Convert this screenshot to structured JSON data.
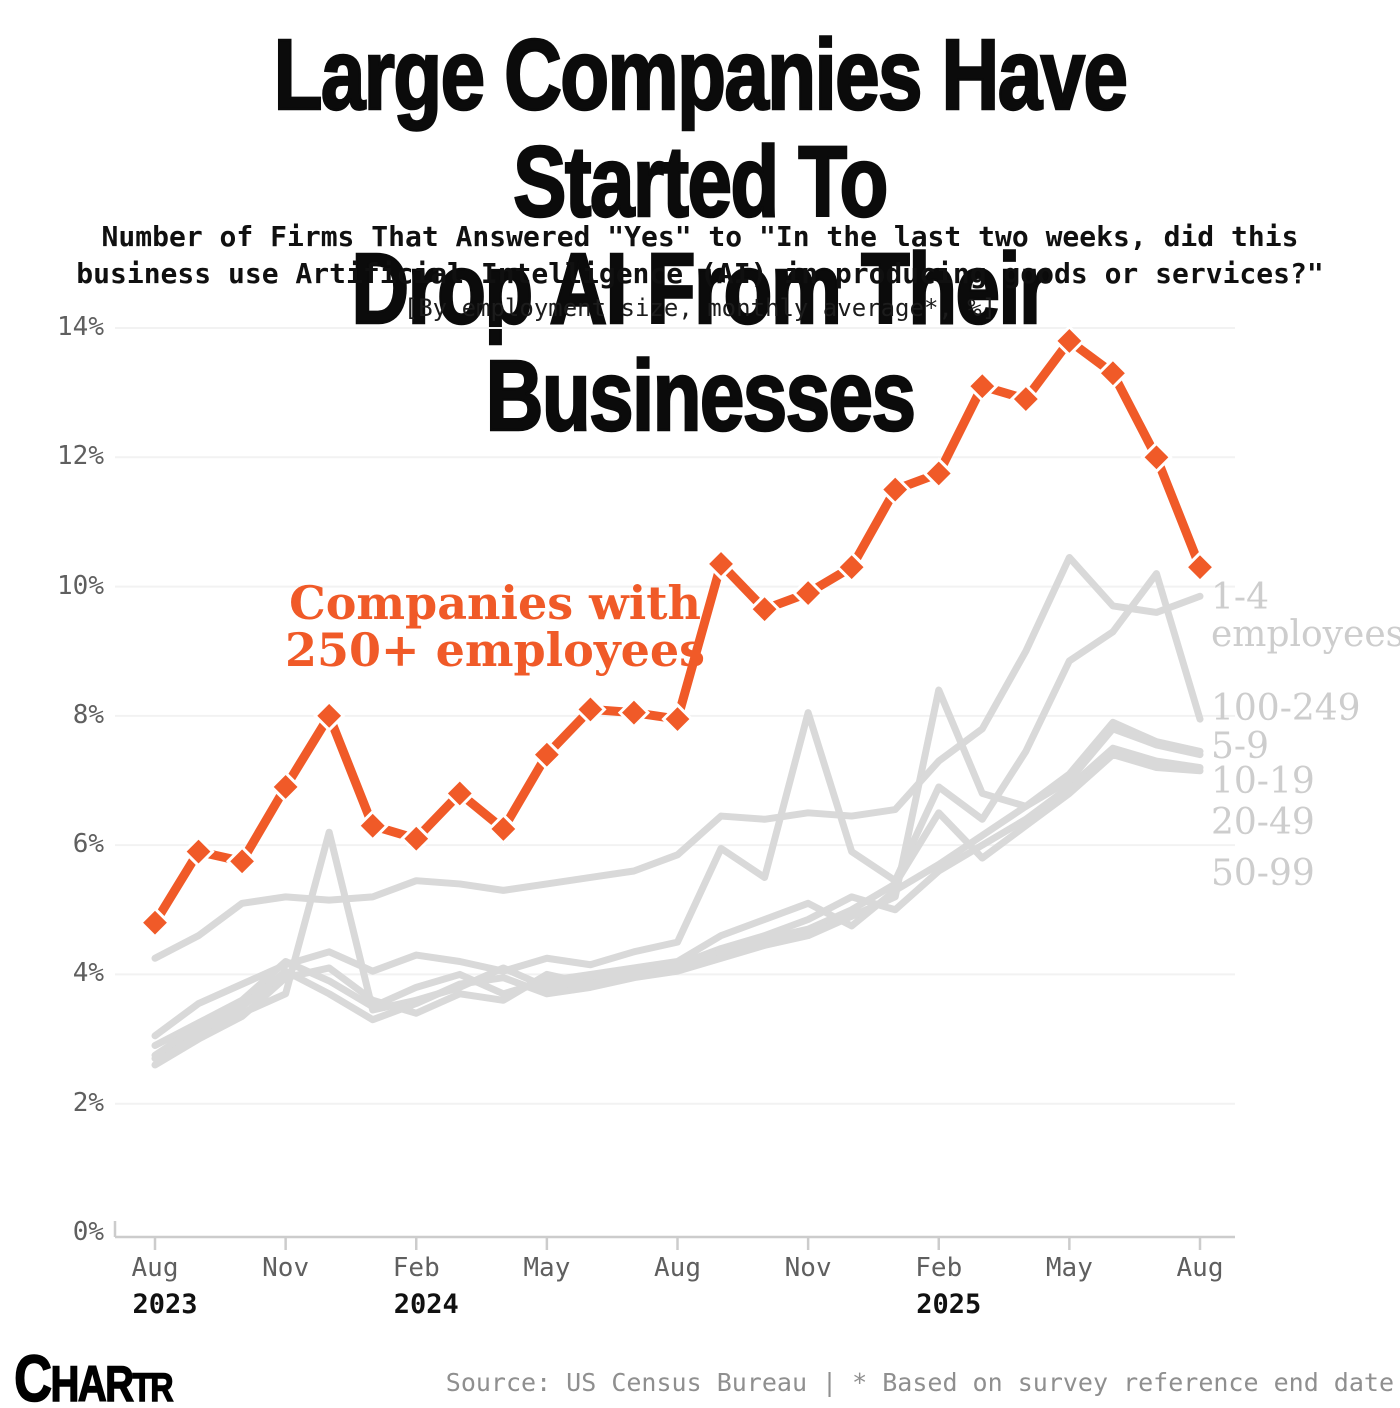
{
  "title": {
    "line1": "Large Companies Have Started To",
    "line2": "Drop AI From Their Businesses"
  },
  "subtitle": {
    "line1": "Number of Firms That Answered \"Yes\" to \"In the last two weeks, did this",
    "line2": "business use Artificial Intelligence (AI) in producing goods or services?\""
  },
  "note": "[By employment size, monthly average*, %]",
  "annotation": {
    "line1": "Companies with",
    "line2": "250+ employees"
  },
  "footer": {
    "logo_part1": "C",
    "logo_part2": "HAR",
    "logo_part3": "TR",
    "source": "Source: US Census Bureau | * Based on survey reference end date"
  },
  "colors": {
    "accent": "#F05A28",
    "gray_line": "#D9D9D9",
    "gray_label": "#CDCDCD",
    "axis_text": "#5F5F5F",
    "grid": "#F2F2F2",
    "axis_line": "#CCCCCC"
  },
  "chart_data": {
    "type": "line",
    "title": "Large Companies Have Started To Drop AI From Their Businesses",
    "subtitle": "Number of Firms That Answered \"Yes\" to \"In the last two weeks, did this business use Artificial Intelligence (AI) in producing goods or services?\"",
    "units": "[By employment size, monthly average*, %]",
    "ylim": [
      0,
      14
    ],
    "grid": true,
    "yticks": [
      {
        "value": 0,
        "label": "0%"
      },
      {
        "value": 2,
        "label": "2%"
      },
      {
        "value": 4,
        "label": "4%"
      },
      {
        "value": 6,
        "label": "6%"
      },
      {
        "value": 8,
        "label": "8%"
      },
      {
        "value": 10,
        "label": "10%"
      },
      {
        "value": 12,
        "label": "12%"
      },
      {
        "value": 14,
        "label": "14%"
      }
    ],
    "x": [
      "Aug 2023",
      "Sep 2023",
      "Oct 2023",
      "Nov 2023",
      "Dec 2023",
      "Jan 2024",
      "Feb 2024",
      "Mar 2024",
      "Apr 2024",
      "May 2024",
      "Jun 2024",
      "Jul 2024",
      "Aug 2024",
      "Sep 2024",
      "Oct 2024",
      "Nov 2024",
      "Dec 2024",
      "Jan 2025",
      "Feb 2025",
      "Mar 2025",
      "Apr 2025",
      "May 2025",
      "Jun 2025",
      "Jul 2025",
      "Aug 2025"
    ],
    "x_ticks": [
      {
        "index": 0,
        "month": "Aug",
        "year": "2023"
      },
      {
        "index": 3,
        "month": "Nov",
        "year": ""
      },
      {
        "index": 6,
        "month": "Feb",
        "year": "2024"
      },
      {
        "index": 9,
        "month": "May",
        "year": ""
      },
      {
        "index": 12,
        "month": "Aug",
        "year": ""
      },
      {
        "index": 15,
        "month": "Nov",
        "year": ""
      },
      {
        "index": 18,
        "month": "Feb",
        "year": "2025"
      },
      {
        "index": 21,
        "month": "May",
        "year": ""
      },
      {
        "index": 24,
        "month": "Aug",
        "year": ""
      }
    ],
    "series": [
      {
        "name": "250+ employees",
        "emphasis": true,
        "marker": "diamond",
        "color": "#F05A28",
        "values": [
          4.8,
          5.9,
          5.75,
          6.9,
          8.0,
          6.3,
          6.1,
          6.8,
          6.25,
          7.4,
          8.1,
          8.05,
          7.95,
          10.35,
          9.65,
          9.9,
          10.3,
          11.5,
          11.75,
          13.1,
          12.9,
          13.8,
          13.3,
          12.0,
          10.3
        ]
      },
      {
        "name": "100-249",
        "emphasis": false,
        "marker": "none",
        "color": "#D9D9D9",
        "label_lines": [
          "100-249"
        ],
        "values": [
          3.05,
          3.55,
          3.85,
          4.15,
          4.35,
          4.05,
          4.3,
          4.2,
          4.05,
          4.25,
          4.15,
          4.35,
          4.5,
          5.95,
          5.5,
          8.05,
          5.9,
          5.45,
          6.9,
          6.4,
          7.45,
          8.85,
          9.3,
          10.2,
          7.95
        ]
      },
      {
        "name": "5-9",
        "emphasis": false,
        "marker": "none",
        "color": "#D9D9D9",
        "label_lines": [
          "5-9"
        ],
        "values": [
          2.9,
          3.25,
          3.6,
          4.2,
          3.9,
          3.5,
          3.8,
          4.0,
          3.7,
          3.9,
          4.0,
          4.1,
          4.2,
          4.6,
          4.85,
          5.1,
          4.75,
          5.3,
          5.7,
          6.15,
          6.6,
          7.1,
          7.9,
          7.6,
          7.45
        ]
      },
      {
        "name": "10-19",
        "emphasis": false,
        "marker": "none",
        "color": "#D9D9D9",
        "label_lines": [
          "10-19"
        ],
        "values": [
          2.7,
          3.1,
          3.4,
          3.7,
          6.2,
          3.45,
          3.6,
          3.8,
          4.1,
          3.8,
          3.9,
          4.05,
          4.15,
          4.4,
          4.6,
          4.85,
          5.2,
          5.0,
          5.6,
          6.0,
          6.4,
          6.9,
          7.5,
          7.3,
          7.2
        ]
      },
      {
        "name": "20-49",
        "emphasis": false,
        "marker": "none",
        "color": "#D9D9D9",
        "label_lines": [
          "20-49"
        ],
        "values": [
          2.6,
          3.0,
          3.35,
          3.95,
          4.1,
          3.6,
          3.4,
          3.7,
          3.6,
          4.0,
          3.85,
          4.0,
          4.1,
          4.35,
          4.55,
          4.7,
          5.0,
          5.4,
          6.5,
          5.8,
          6.3,
          6.8,
          7.4,
          7.2,
          7.15
        ]
      },
      {
        "name": "50-99",
        "emphasis": false,
        "marker": "none",
        "color": "#D9D9D9",
        "label_lines": [
          "50-99"
        ],
        "values": [
          2.75,
          3.2,
          3.5,
          4.05,
          3.7,
          3.3,
          3.55,
          3.85,
          3.95,
          3.7,
          3.8,
          3.95,
          4.05,
          4.25,
          4.45,
          4.6,
          4.9,
          5.2,
          8.4,
          6.8,
          6.6,
          7.0,
          7.8,
          7.55,
          7.4
        ]
      },
      {
        "name": "1-4 employees",
        "emphasis": false,
        "marker": "none",
        "color": "#D9D9D9",
        "label_lines": [
          "1-4",
          "employees"
        ],
        "values": [
          4.25,
          4.6,
          5.1,
          5.2,
          5.15,
          5.2,
          5.45,
          5.4,
          5.3,
          5.4,
          5.5,
          5.6,
          5.85,
          6.45,
          6.4,
          6.5,
          6.45,
          6.55,
          7.3,
          7.8,
          9.0,
          10.45,
          9.7,
          9.6,
          9.85
        ]
      }
    ],
    "legend_position": "right-edge-labels"
  }
}
